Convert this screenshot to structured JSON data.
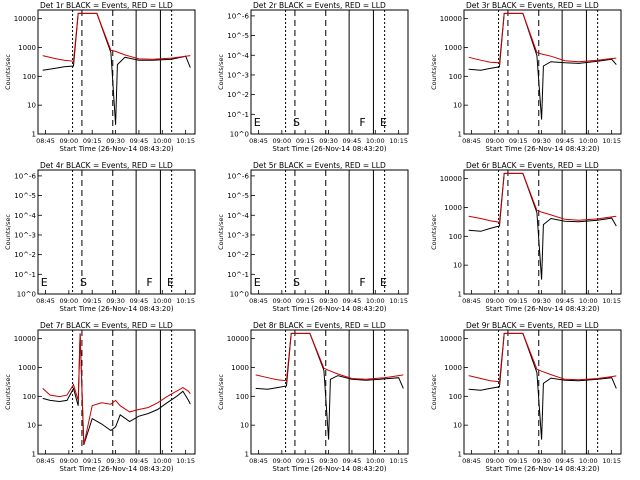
{
  "chart_data": [
    {
      "type": "line",
      "title": "Det 1r BLACK = Events, RED = LLD",
      "xlabel": "Start Time (26-Nov-14 08:43:20)",
      "ylabel": "Counts/sec",
      "yscale": "log",
      "ytick_labels": [
        "1",
        "10",
        "100",
        "1000",
        "10000"
      ],
      "xtick_labels": [
        "08:45",
        "09:00",
        "09:15",
        "09:30",
        "09:45",
        "10:00",
        "10:15"
      ],
      "markers": [],
      "series": [
        {
          "color": "#000000",
          "points": [
            [
              8.72,
              130
            ],
            [
              8.85,
              150
            ],
            [
              8.95,
              170
            ],
            [
              9.05,
              180
            ],
            [
              9.1,
              10000
            ],
            [
              9.3,
              10000
            ],
            [
              9.45,
              500
            ],
            [
              9.5,
              2
            ],
            [
              9.52,
              200
            ],
            [
              9.6,
              350
            ],
            [
              9.75,
              280
            ],
            [
              9.9,
              280
            ],
            [
              10.1,
              300
            ],
            [
              10.25,
              380
            ],
            [
              10.3,
              160
            ]
          ]
        },
        {
          "color": "#cc0000",
          "points": [
            [
              8.72,
              400
            ],
            [
              8.85,
              320
            ],
            [
              8.95,
              280
            ],
            [
              9.05,
              260
            ],
            [
              9.1,
              10000
            ],
            [
              9.3,
              10000
            ],
            [
              9.45,
              600
            ],
            [
              9.5,
              550
            ],
            [
              9.6,
              420
            ],
            [
              9.75,
              310
            ],
            [
              9.9,
              300
            ],
            [
              10.1,
              330
            ],
            [
              10.25,
              380
            ],
            [
              10.3,
              400
            ]
          ]
        }
      ]
    },
    {
      "type": "line",
      "title": "Det 2r BLACK = Events, RED = LLD",
      "xlabel": "Start Time (26-Nov-14 08:43:20)",
      "ylabel": "Counts/sec",
      "yscale": "log",
      "ytick_labels": [
        "10^0",
        "10^-1",
        "10^-2",
        "10^-3",
        "10^-4",
        "10^-5",
        "10^-6"
      ],
      "xtick_labels": [
        "08:45",
        "09:00",
        "09:15",
        "09:30",
        "09:45",
        "10:00",
        "10:15"
      ],
      "markers": [
        "E",
        "S",
        "F",
        "E"
      ],
      "series": []
    },
    {
      "type": "line",
      "title": "Det 3r BLACK = Events, RED = LLD",
      "xlabel": "Start Time (26-Nov-14 08:43:20)",
      "ylabel": "Counts/sec",
      "yscale": "log",
      "ytick_labels": [
        "1",
        "10",
        "100",
        "1000",
        "10000"
      ],
      "xtick_labels": [
        "08:45",
        "09:00",
        "09:15",
        "09:30",
        "09:45",
        "10:00",
        "10:15"
      ],
      "markers": [],
      "series": [
        {
          "color": "#000000",
          "points": [
            [
              8.72,
              140
            ],
            [
              8.85,
              130
            ],
            [
              8.95,
              150
            ],
            [
              9.05,
              170
            ],
            [
              9.1,
              10000
            ],
            [
              9.3,
              10000
            ],
            [
              9.45,
              400
            ],
            [
              9.5,
              3
            ],
            [
              9.52,
              180
            ],
            [
              9.6,
              250
            ],
            [
              9.75,
              230
            ],
            [
              9.9,
              220
            ],
            [
              10.1,
              260
            ],
            [
              10.25,
              300
            ],
            [
              10.3,
              200
            ]
          ]
        },
        {
          "color": "#cc0000",
          "points": [
            [
              8.72,
              350
            ],
            [
              8.85,
              280
            ],
            [
              8.95,
              240
            ],
            [
              9.05,
              230
            ],
            [
              9.1,
              10000
            ],
            [
              9.3,
              10000
            ],
            [
              9.45,
              500
            ],
            [
              9.5,
              450
            ],
            [
              9.6,
              380
            ],
            [
              9.75,
              270
            ],
            [
              9.9,
              250
            ],
            [
              10.1,
              280
            ],
            [
              10.25,
              320
            ],
            [
              10.3,
              330
            ]
          ]
        }
      ]
    },
    {
      "type": "line",
      "title": "Det 4r BLACK = Events, RED = LLD",
      "xlabel": "Start Time (26-Nov-14 08:43:20)",
      "ylabel": "Counts/sec",
      "yscale": "log",
      "ytick_labels": [
        "10^0",
        "10^-1",
        "10^-2",
        "10^-3",
        "10^-4",
        "10^-5",
        "10^-6"
      ],
      "xtick_labels": [
        "08:45",
        "09:00",
        "09:15",
        "09:30",
        "09:45",
        "10:00",
        "10:15"
      ],
      "markers": [
        "E",
        "S",
        "F",
        "E"
      ],
      "series": []
    },
    {
      "type": "line",
      "title": "Det 5r BLACK = Events, RED = LLD",
      "xlabel": "Start Time (26-Nov-14 08:43:20)",
      "ylabel": "Counts/sec",
      "yscale": "log",
      "ytick_labels": [
        "10^0",
        "10^-1",
        "10^-2",
        "10^-3",
        "10^-4",
        "10^-5",
        "10^-6"
      ],
      "xtick_labels": [
        "08:45",
        "09:00",
        "09:15",
        "09:30",
        "09:45",
        "10:00",
        "10:15"
      ],
      "markers": [
        "E",
        "S",
        "F",
        "E"
      ],
      "series": []
    },
    {
      "type": "line",
      "title": "Det 6r BLACK = Events, RED = LLD",
      "xlabel": "Start Time (26-Nov-14 08:43:20)",
      "ylabel": "Counts/sec",
      "yscale": "log",
      "ytick_labels": [
        "1",
        "10",
        "100",
        "1000",
        "10000"
      ],
      "xtick_labels": [
        "08:45",
        "09:00",
        "09:15",
        "09:30",
        "09:45",
        "10:00",
        "10:15"
      ],
      "markers": [],
      "series": [
        {
          "color": "#000000",
          "points": [
            [
              8.72,
              130
            ],
            [
              8.85,
              120
            ],
            [
              8.95,
              150
            ],
            [
              9.05,
              180
            ],
            [
              9.1,
              10000
            ],
            [
              9.3,
              10000
            ],
            [
              9.45,
              500
            ],
            [
              9.5,
              3
            ],
            [
              9.52,
              200
            ],
            [
              9.6,
              320
            ],
            [
              9.75,
              260
            ],
            [
              9.9,
              250
            ],
            [
              10.1,
              280
            ],
            [
              10.25,
              330
            ],
            [
              10.3,
              180
            ]
          ]
        },
        {
          "color": "#cc0000",
          "points": [
            [
              8.72,
              380
            ],
            [
              8.85,
              320
            ],
            [
              8.95,
              270
            ],
            [
              9.05,
              240
            ],
            [
              9.1,
              10000
            ],
            [
              9.3,
              10000
            ],
            [
              9.45,
              600
            ],
            [
              9.5,
              520
            ],
            [
              9.6,
              420
            ],
            [
              9.75,
              300
            ],
            [
              9.9,
              280
            ],
            [
              10.1,
              310
            ],
            [
              10.25,
              360
            ],
            [
              10.3,
              380
            ]
          ]
        }
      ]
    },
    {
      "type": "line",
      "title": "Det 7r BLACK = Events, RED = LLD",
      "xlabel": "Start Time (26-Nov-14 08:43:20)",
      "ylabel": "Counts/sec",
      "yscale": "log",
      "ytick_labels": [
        "1",
        "10",
        "100",
        "1000",
        "10000"
      ],
      "xtick_labels": [
        "08:45",
        "09:00",
        "09:15",
        "09:30",
        "09:45",
        "10:00",
        "10:15"
      ],
      "markers": [],
      "series": [
        {
          "color": "#000000",
          "points": [
            [
              8.72,
              70
            ],
            [
              8.8,
              60
            ],
            [
              8.9,
              55
            ],
            [
              8.98,
              60
            ],
            [
              9.05,
              150
            ],
            [
              9.1,
              40
            ],
            [
              9.12,
              10000
            ],
            [
              9.16,
              2
            ],
            [
              9.25,
              15
            ],
            [
              9.35,
              10
            ],
            [
              9.45,
              6
            ],
            [
              9.5,
              8
            ],
            [
              9.55,
              20
            ],
            [
              9.65,
              12
            ],
            [
              9.75,
              18
            ],
            [
              9.85,
              22
            ],
            [
              9.95,
              30
            ],
            [
              10.05,
              50
            ],
            [
              10.15,
              80
            ],
            [
              10.22,
              120
            ],
            [
              10.28,
              60
            ],
            [
              10.3,
              45
            ]
          ]
        },
        {
          "color": "#cc0000",
          "points": [
            [
              8.72,
              150
            ],
            [
              8.8,
              90
            ],
            [
              8.9,
              80
            ],
            [
              8.98,
              90
            ],
            [
              9.05,
              200
            ],
            [
              9.1,
              60
            ],
            [
              9.12,
              10000
            ],
            [
              9.16,
              2
            ],
            [
              9.25,
              40
            ],
            [
              9.35,
              50
            ],
            [
              9.45,
              45
            ],
            [
              9.5,
              60
            ],
            [
              9.55,
              40
            ],
            [
              9.65,
              25
            ],
            [
              9.75,
              30
            ],
            [
              9.85,
              35
            ],
            [
              9.95,
              50
            ],
            [
              10.05,
              80
            ],
            [
              10.15,
              120
            ],
            [
              10.22,
              160
            ],
            [
              10.28,
              120
            ],
            [
              10.3,
              100
            ]
          ]
        }
      ]
    },
    {
      "type": "line",
      "title": "Det 8r BLACK = Events, RED = LLD",
      "xlabel": "Start Time (26-Nov-14 08:43:20)",
      "ylabel": "Counts/sec",
      "yscale": "log",
      "ytick_labels": [
        "1",
        "10",
        "100",
        "1000",
        "10000"
      ],
      "xtick_labels": [
        "08:45",
        "09:00",
        "09:15",
        "09:30",
        "09:45",
        "10:00",
        "10:15"
      ],
      "markers": [],
      "series": [
        {
          "color": "#000000",
          "points": [
            [
              8.72,
              150
            ],
            [
              8.85,
              140
            ],
            [
              8.95,
              160
            ],
            [
              9.05,
              180
            ],
            [
              9.1,
              10000
            ],
            [
              9.3,
              10000
            ],
            [
              9.45,
              600
            ],
            [
              9.5,
              3
            ],
            [
              9.52,
              300
            ],
            [
              9.6,
              400
            ],
            [
              9.75,
              300
            ],
            [
              9.9,
              280
            ],
            [
              10.1,
              310
            ],
            [
              10.25,
              340
            ],
            [
              10.3,
              150
            ]
          ]
        },
        {
          "color": "#cc0000",
          "points": [
            [
              8.72,
              420
            ],
            [
              8.85,
              340
            ],
            [
              8.95,
              290
            ],
            [
              9.05,
              270
            ],
            [
              9.1,
              10000
            ],
            [
              9.3,
              10000
            ],
            [
              9.45,
              700
            ],
            [
              9.5,
              600
            ],
            [
              9.6,
              450
            ],
            [
              9.75,
              320
            ],
            [
              9.9,
              300
            ],
            [
              10.1,
              340
            ],
            [
              10.25,
              400
            ],
            [
              10.3,
              420
            ]
          ]
        }
      ]
    },
    {
      "type": "line",
      "title": "Det 9r BLACK = Events, RED = LLD",
      "xlabel": "Start Time (26-Nov-14 08:43:20)",
      "ylabel": "Counts/sec",
      "yscale": "log",
      "ytick_labels": [
        "1",
        "10",
        "100",
        "1000",
        "10000"
      ],
      "xtick_labels": [
        "08:45",
        "09:00",
        "09:15",
        "09:30",
        "09:45",
        "10:00",
        "10:15"
      ],
      "markers": [],
      "series": [
        {
          "color": "#000000",
          "points": [
            [
              8.72,
              140
            ],
            [
              8.85,
              130
            ],
            [
              8.95,
              150
            ],
            [
              9.05,
              170
            ],
            [
              9.1,
              10000
            ],
            [
              9.3,
              10000
            ],
            [
              9.45,
              500
            ],
            [
              9.5,
              3
            ],
            [
              9.52,
              220
            ],
            [
              9.6,
              330
            ],
            [
              9.75,
              280
            ],
            [
              9.9,
              270
            ],
            [
              10.1,
              300
            ],
            [
              10.25,
              340
            ],
            [
              10.3,
              150
            ]
          ]
        },
        {
          "color": "#cc0000",
          "points": [
            [
              8.72,
              400
            ],
            [
              8.85,
              320
            ],
            [
              8.95,
              270
            ],
            [
              9.05,
              250
            ],
            [
              9.1,
              10000
            ],
            [
              9.3,
              10000
            ],
            [
              9.45,
              650
            ],
            [
              9.5,
              560
            ],
            [
              9.6,
              430
            ],
            [
              9.75,
              300
            ],
            [
              9.9,
              290
            ],
            [
              10.1,
              320
            ],
            [
              10.25,
              370
            ],
            [
              10.3,
              390
            ]
          ]
        }
      ]
    }
  ]
}
